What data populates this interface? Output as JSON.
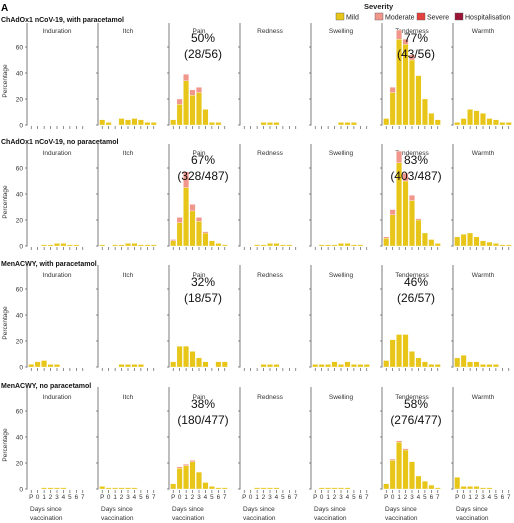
{
  "panel_label": "A",
  "legend": {
    "title": "Severity",
    "items": [
      {
        "label": "Mild",
        "color": "#e8c619"
      },
      {
        "label": "Moderate",
        "color": "#f0968a"
      },
      {
        "label": "Severe",
        "color": "#e2413e"
      },
      {
        "label": "Hospitalisation",
        "color": "#9b1636"
      }
    ]
  },
  "chart_data": {
    "type": "bar",
    "stacked": true,
    "ylabel": "Percentage",
    "xlabel": "Days since vaccination",
    "ylim": [
      0,
      80
    ],
    "yticks": [
      0,
      20,
      40,
      60
    ],
    "x_ticks": [
      "P",
      "0",
      "1",
      "2",
      "3",
      "4",
      "5",
      "6",
      "7"
    ],
    "facets": [
      "Induration",
      "Itch",
      "Pain",
      "Redness",
      "Swelling",
      "Tenderness",
      "Warmth"
    ],
    "stack_order": [
      "Mild",
      "Moderate",
      "Severe",
      "Hospitalisation"
    ],
    "rows": [
      {
        "title": "ChAdOx1 nCoV-19, with paracetamol",
        "annotations": [
          {
            "facet": "Pain",
            "pct": "50%",
            "count": "(28/56)"
          },
          {
            "facet": "Tenderness",
            "pct": "77%",
            "count": "(43/56)"
          }
        ],
        "facets": {
          "Induration": {
            "Mild": [
              0,
              0,
              0,
              0,
              0,
              0,
              0,
              0,
              0
            ],
            "Moderate": [
              0,
              0,
              0,
              0,
              0,
              0,
              0,
              0,
              0
            ]
          },
          "Itch": {
            "Mild": [
              4,
              2,
              0,
              5,
              4,
              5,
              4,
              2,
              2
            ],
            "Moderate": [
              0,
              0,
              0,
              0,
              0,
              0,
              0,
              0,
              0
            ]
          },
          "Pain": {
            "Mild": [
              4,
              16,
              34,
              23,
              25,
              12,
              2,
              2,
              0
            ],
            "Moderate": [
              0,
              4,
              5,
              4,
              4,
              0,
              0,
              0,
              0
            ]
          },
          "Redness": {
            "Mild": [
              0,
              0,
              0,
              2,
              2,
              2,
              0,
              0,
              0
            ],
            "Moderate": [
              0,
              0,
              0,
              0,
              0,
              0,
              0,
              0,
              0
            ]
          },
          "Swelling": {
            "Mild": [
              0,
              0,
              0,
              0,
              2,
              2,
              2,
              0,
              0
            ],
            "Moderate": [
              0,
              0,
              0,
              0,
              0,
              0,
              0,
              0,
              0
            ]
          },
          "Tenderness": {
            "Mild": [
              5,
              25,
              66,
              62,
              50,
              38,
              20,
              9,
              4
            ],
            "Moderate": [
              0,
              4,
              7,
              4,
              4,
              0,
              0,
              0,
              0
            ]
          },
          "Warmth": {
            "Mild": [
              2,
              5,
              12,
              11,
              9,
              5,
              4,
              2,
              2
            ],
            "Moderate": [
              0,
              0,
              0,
              0,
              0,
              0,
              0,
              0,
              0
            ]
          }
        }
      },
      {
        "title": "ChAdOx1 nCoV-19, no paracetamol",
        "annotations": [
          {
            "facet": "Pain",
            "pct": "67%",
            "count": "(328/487)"
          },
          {
            "facet": "Tenderness",
            "pct": "83%",
            "count": "(403/487)"
          }
        ],
        "facets": {
          "Induration": {
            "Mild": [
              0,
              0,
              1,
              1,
              2,
              2,
              1,
              1,
              0
            ],
            "Moderate": [
              0,
              0,
              0,
              0,
              0,
              0,
              0,
              0,
              0
            ]
          },
          "Itch": {
            "Mild": [
              1,
              0,
              1,
              1,
              2,
              2,
              1,
              1,
              1
            ],
            "Moderate": [
              0,
              0,
              0,
              0,
              0,
              0,
              0,
              0,
              0
            ]
          },
          "Pain": {
            "Mild": [
              4,
              18,
              45,
              27,
              19,
              10,
              4,
              2,
              1
            ],
            "Moderate": [
              1,
              4,
              12,
              5,
              3,
              1,
              0,
              0,
              0
            ]
          },
          "Redness": {
            "Mild": [
              0,
              0,
              1,
              1,
              2,
              2,
              1,
              1,
              0
            ],
            "Moderate": [
              0,
              0,
              0,
              0,
              0,
              0,
              0,
              0,
              0
            ]
          },
          "Swelling": {
            "Mild": [
              0,
              1,
              1,
              1,
              2,
              2,
              1,
              1,
              0
            ],
            "Moderate": [
              0,
              0,
              0,
              0,
              0,
              0,
              0,
              0,
              0
            ]
          },
          "Tenderness": {
            "Mild": [
              6,
              24,
              64,
              50,
              35,
              20,
              10,
              5,
              2
            ],
            "Moderate": [
              1,
              4,
              9,
              6,
              4,
              1,
              0,
              0,
              0
            ]
          },
          "Warmth": {
            "Mild": [
              7,
              9,
              10,
              7,
              4,
              3,
              2,
              1,
              1
            ],
            "Moderate": [
              0,
              0,
              0,
              0,
              0,
              0,
              0,
              0,
              0
            ]
          }
        }
      },
      {
        "title": "MenACWY, with paracetamol",
        "annotations": [
          {
            "facet": "Pain",
            "pct": "32%",
            "count": "(18/57)"
          },
          {
            "facet": "Tenderness",
            "pct": "46%",
            "count": "(26/57)"
          }
        ],
        "facets": {
          "Induration": {
            "Mild": [
              2,
              4,
              5,
              2,
              2,
              0,
              0,
              0,
              0
            ],
            "Moderate": [
              0,
              0,
              0,
              0,
              0,
              0,
              0,
              0,
              0
            ]
          },
          "Itch": {
            "Mild": [
              0,
              0,
              0,
              2,
              2,
              2,
              2,
              0,
              0
            ],
            "Moderate": [
              0,
              0,
              0,
              0,
              0,
              0,
              0,
              0,
              0
            ]
          },
          "Pain": {
            "Mild": [
              4,
              16,
              16,
              12,
              7,
              4,
              0,
              4,
              4
            ],
            "Moderate": [
              0,
              0,
              0,
              0,
              0,
              0,
              0,
              0,
              0
            ]
          },
          "Redness": {
            "Mild": [
              0,
              0,
              0,
              2,
              2,
              2,
              0,
              0,
              0
            ],
            "Moderate": [
              0,
              0,
              0,
              0,
              0,
              0,
              0,
              0,
              0
            ]
          },
          "Swelling": {
            "Mild": [
              2,
              2,
              2,
              4,
              2,
              4,
              2,
              2,
              2
            ],
            "Moderate": [
              0,
              0,
              0,
              0,
              0,
              0,
              0,
              0,
              0
            ]
          },
          "Tenderness": {
            "Mild": [
              5,
              21,
              25,
              25,
              12,
              7,
              4,
              2,
              2
            ],
            "Moderate": [
              0,
              0,
              0,
              0,
              0,
              0,
              0,
              0,
              0
            ]
          },
          "Warmth": {
            "Mild": [
              7,
              9,
              4,
              4,
              2,
              2,
              2,
              0,
              0
            ],
            "Moderate": [
              0,
              0,
              0,
              0,
              0,
              0,
              0,
              0,
              0
            ]
          }
        }
      },
      {
        "title": "MenACWY, no paracetamol",
        "annotations": [
          {
            "facet": "Pain",
            "pct": "38%",
            "count": "(180/477)"
          },
          {
            "facet": "Tenderness",
            "pct": "58%",
            "count": "(276/477)"
          }
        ],
        "facets": {
          "Induration": {
            "Mild": [
              0,
              0,
              1,
              1,
              1,
              1,
              0,
              0,
              0
            ],
            "Moderate": [
              0,
              0,
              0,
              0,
              0,
              0,
              0,
              0,
              0
            ]
          },
          "Itch": {
            "Mild": [
              2,
              1,
              1,
              1,
              1,
              1,
              0,
              0,
              0
            ],
            "Moderate": [
              0,
              0,
              0,
              0,
              0,
              0,
              0,
              0,
              0
            ]
          },
          "Pain": {
            "Mild": [
              4,
              16,
              18,
              21,
              13,
              5,
              2,
              1,
              1
            ],
            "Moderate": [
              0,
              1,
              1,
              1,
              0,
              0,
              0,
              0,
              0
            ]
          },
          "Redness": {
            "Mild": [
              0,
              0,
              1,
              1,
              1,
              1,
              0,
              0,
              0
            ],
            "Moderate": [
              0,
              0,
              0,
              0,
              0,
              0,
              0,
              0,
              0
            ]
          },
          "Swelling": {
            "Mild": [
              0,
              1,
              1,
              1,
              1,
              1,
              0,
              0,
              0
            ],
            "Moderate": [
              0,
              0,
              0,
              0,
              0,
              0,
              0,
              0,
              0
            ]
          },
          "Tenderness": {
            "Mild": [
              4,
              22,
              36,
              30,
              21,
              10,
              6,
              3,
              1
            ],
            "Moderate": [
              0,
              1,
              1,
              1,
              0,
              0,
              0,
              0,
              0
            ]
          },
          "Warmth": {
            "Mild": [
              9,
              2,
              2,
              2,
              1,
              1,
              0,
              0,
              0
            ],
            "Moderate": [
              0,
              0,
              0,
              0,
              0,
              0,
              0,
              0,
              0
            ]
          }
        }
      }
    ]
  }
}
